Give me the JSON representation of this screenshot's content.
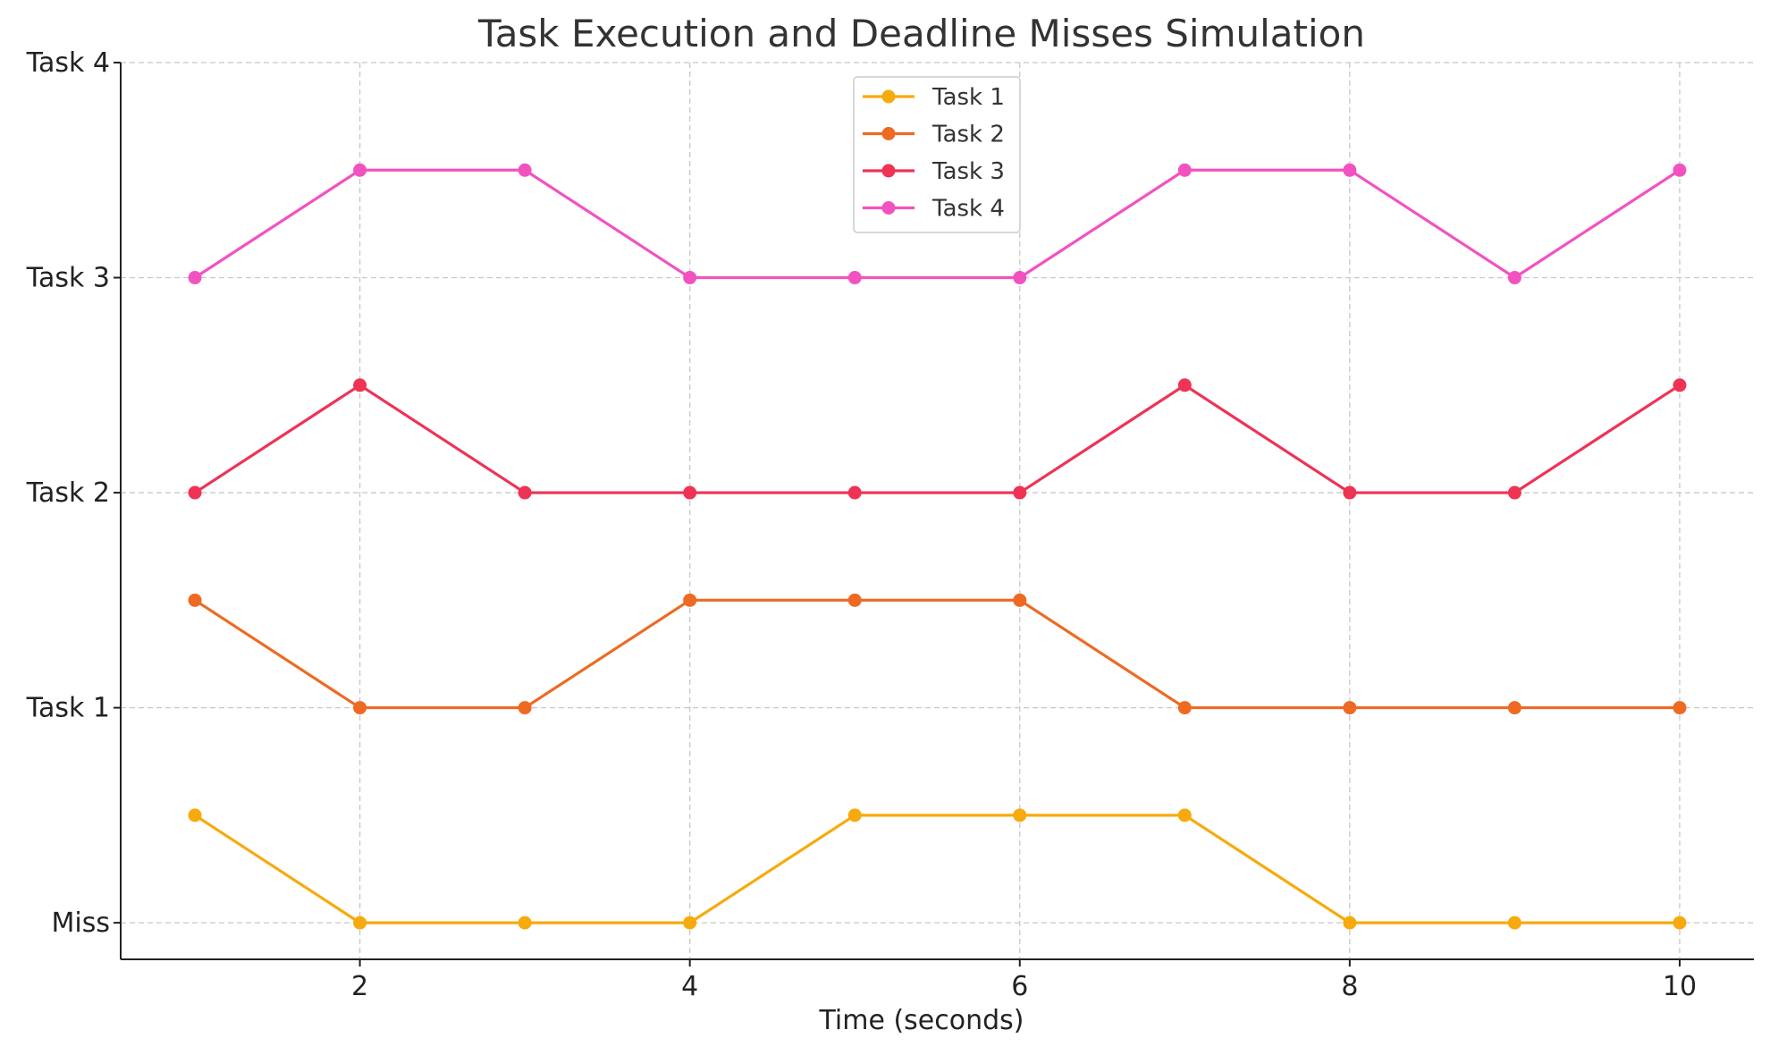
{
  "chart_data": {
    "type": "line",
    "title": "Task Execution and Deadline Misses Simulation",
    "xlabel": "Time (seconds)",
    "ylabel": "",
    "xlim": [
      0.55,
      10.45
    ],
    "ylim": [
      -0.17,
      4.0
    ],
    "xticks": [
      2,
      4,
      6,
      8,
      10
    ],
    "yticks": [
      {
        "value": 0,
        "label": "Miss"
      },
      {
        "value": 1,
        "label": "Task 1"
      },
      {
        "value": 2,
        "label": "Task 2"
      },
      {
        "value": 3,
        "label": "Task 3"
      },
      {
        "value": 4,
        "label": "Task 4"
      }
    ],
    "grid": true,
    "legend_position": "top-center",
    "x": [
      1,
      2,
      3,
      4,
      5,
      6,
      7,
      8,
      9,
      10
    ],
    "series": [
      {
        "name": "Task 1",
        "color": "#F7AA0E",
        "values": [
          0.5,
          0,
          0,
          0,
          0.5,
          0.5,
          0.5,
          0,
          0,
          0
        ]
      },
      {
        "name": "Task 2",
        "color": "#EE6A22",
        "values": [
          1.5,
          1,
          1,
          1.5,
          1.5,
          1.5,
          1,
          1,
          1,
          1
        ]
      },
      {
        "name": "Task 3",
        "color": "#EE3354",
        "values": [
          2,
          2.5,
          2,
          2,
          2,
          2,
          2.5,
          2,
          2,
          2.5
        ]
      },
      {
        "name": "Task 4",
        "color": "#F252C0",
        "values": [
          3,
          3.5,
          3.5,
          3,
          3,
          3,
          3.5,
          3.5,
          3,
          3.5
        ]
      }
    ]
  }
}
